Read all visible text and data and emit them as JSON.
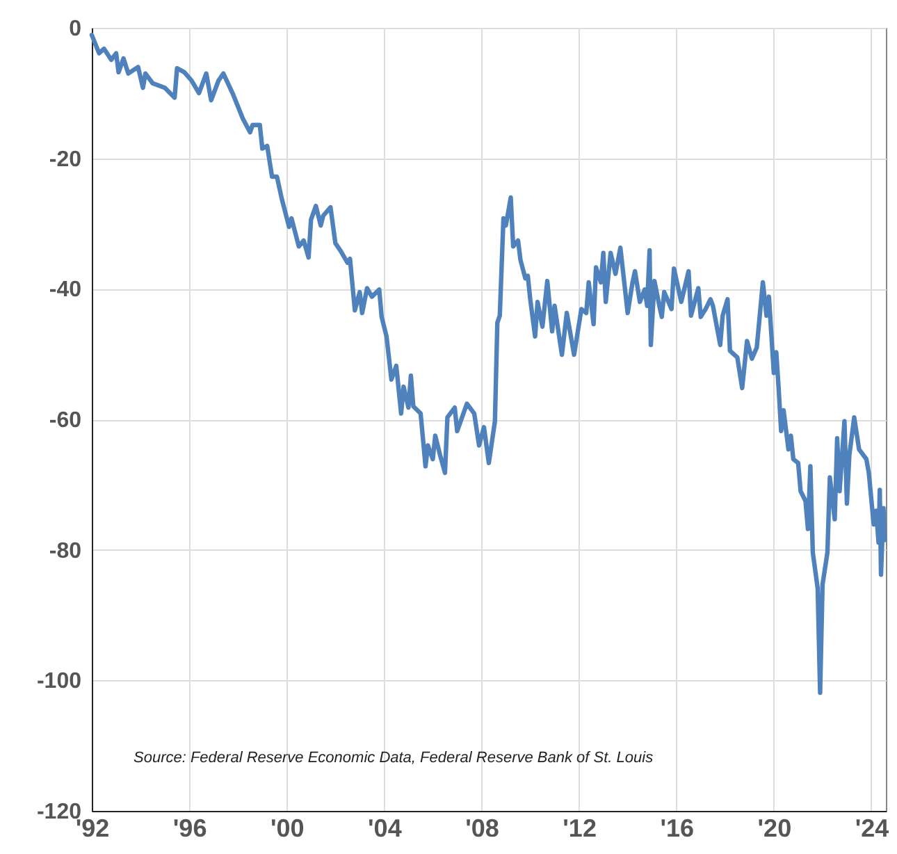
{
  "chart_data": {
    "type": "line",
    "x": [
      1992.0,
      1992.3,
      1992.5,
      1992.8,
      1993.0,
      1993.1,
      1993.3,
      1993.5,
      1993.9,
      1994.1,
      1994.2,
      1994.5,
      1995.0,
      1995.4,
      1995.5,
      1995.8,
      1996.1,
      1996.4,
      1996.7,
      1996.9,
      1997.2,
      1997.4,
      1997.8,
      1998.2,
      1998.5,
      1998.6,
      1998.9,
      1999.0,
      1999.2,
      1999.4,
      1999.6,
      1999.8,
      2000.1,
      2000.2,
      2000.5,
      2000.7,
      2000.9,
      2001.0,
      2001.2,
      2001.4,
      2001.5,
      2001.8,
      2002.0,
      2002.2,
      2002.5,
      2002.6,
      2002.8,
      2003.0,
      2003.1,
      2003.3,
      2003.5,
      2003.8,
      2003.9,
      2004.1,
      2004.3,
      2004.5,
      2004.7,
      2004.8,
      2005.0,
      2005.1,
      2005.2,
      2005.5,
      2005.7,
      2005.8,
      2006.0,
      2006.1,
      2006.3,
      2006.5,
      2006.6,
      2006.9,
      2007.0,
      2007.4,
      2007.7,
      2007.9,
      2008.1,
      2008.3,
      2008.55,
      2008.65,
      2008.75,
      2008.9,
      2009.0,
      2009.2,
      2009.3,
      2009.5,
      2009.6,
      2009.8,
      2009.9,
      2010.0,
      2010.2,
      2010.3,
      2010.5,
      2010.7,
      2010.9,
      2011.0,
      2011.3,
      2011.5,
      2011.8,
      2012.1,
      2012.3,
      2012.4,
      2012.6,
      2012.7,
      2012.9,
      2013.0,
      2013.1,
      2013.3,
      2013.5,
      2013.7,
      2014.0,
      2014.2,
      2014.3,
      2014.5,
      2014.7,
      2014.8,
      2014.9,
      2014.95,
      2015.1,
      2015.3,
      2015.4,
      2015.5,
      2015.8,
      2015.9,
      2016.2,
      2016.5,
      2016.6,
      2016.9,
      2017.0,
      2017.2,
      2017.4,
      2017.5,
      2017.8,
      2017.9,
      2018.1,
      2018.2,
      2018.5,
      2018.7,
      2018.9,
      2019.1,
      2019.3,
      2019.55,
      2019.7,
      2019.8,
      2020.0,
      2020.1,
      2020.2,
      2020.3,
      2020.4,
      2020.6,
      2020.7,
      2020.8,
      2021.0,
      2021.1,
      2021.3,
      2021.4,
      2021.5,
      2021.6,
      2021.8,
      2021.9,
      2022.0,
      2022.2,
      2022.3,
      2022.5,
      2022.6,
      2022.7,
      2022.9,
      2023.0,
      2023.1,
      2023.3,
      2023.5,
      2023.8,
      2023.9,
      2024.1,
      2024.2,
      2024.3,
      2024.35,
      2024.4,
      2024.5,
      2024.55
    ],
    "series": [
      {
        "color": "#4f81bd",
        "values": [
          -1.1,
          -3.9,
          -3.2,
          -4.9,
          -3.9,
          -6.8,
          -4.7,
          -7.0,
          -6.0,
          -9.2,
          -7.0,
          -8.5,
          -9.2,
          -10.7,
          -6.2,
          -6.8,
          -8.1,
          -10.0,
          -7.0,
          -11.1,
          -8.1,
          -7.0,
          -10.2,
          -13.9,
          -16.0,
          -14.9,
          -14.9,
          -18.5,
          -18.1,
          -22.8,
          -22.8,
          -26.2,
          -30.5,
          -29.2,
          -33.5,
          -32.6,
          -35.2,
          -29.4,
          -27.3,
          -30.3,
          -28.8,
          -27.5,
          -33.0,
          -34.1,
          -36.0,
          -35.4,
          -43.3,
          -40.5,
          -43.7,
          -39.9,
          -41.2,
          -40.1,
          -44.3,
          -47.3,
          -53.9,
          -51.8,
          -59.1,
          -55.0,
          -58.2,
          -53.3,
          -58.0,
          -59.1,
          -67.2,
          -64.0,
          -66.1,
          -62.5,
          -65.5,
          -68.2,
          -59.7,
          -58.2,
          -61.8,
          -57.6,
          -59.1,
          -64.0,
          -61.2,
          -66.7,
          -60.3,
          -45.2,
          -44.1,
          -29.2,
          -30.3,
          -26.0,
          -33.5,
          -32.6,
          -35.6,
          -38.4,
          -38.0,
          -41.6,
          -47.3,
          -42.0,
          -45.8,
          -38.8,
          -46.5,
          -42.6,
          -50.1,
          -43.7,
          -50.1,
          -43.1,
          -43.7,
          -39.0,
          -45.4,
          -36.7,
          -39.0,
          -34.5,
          -42.0,
          -34.5,
          -37.7,
          -33.7,
          -43.7,
          -39.0,
          -37.3,
          -42.0,
          -40.1,
          -42.6,
          -34.1,
          -48.6,
          -38.8,
          -42.6,
          -44.3,
          -40.5,
          -43.1,
          -36.9,
          -42.0,
          -37.3,
          -44.1,
          -39.9,
          -44.3,
          -43.1,
          -41.6,
          -42.6,
          -48.6,
          -44.1,
          -41.6,
          -49.5,
          -50.5,
          -55.2,
          -48.0,
          -50.7,
          -49.0,
          -39.0,
          -44.1,
          -41.2,
          -52.9,
          -49.7,
          -55.4,
          -61.8,
          -58.6,
          -64.6,
          -62.5,
          -66.1,
          -66.7,
          -71.0,
          -72.5,
          -76.8,
          -67.2,
          -80.4,
          -85.9,
          -101.9,
          -85.3,
          -80.4,
          -68.9,
          -75.3,
          -62.9,
          -71.0,
          -60.3,
          -72.9,
          -65.5,
          -59.7,
          -64.6,
          -66.1,
          -68.2,
          -76.1,
          -74.0,
          -78.9,
          -70.8,
          -83.8,
          -73.6,
          -78.5
        ]
      }
    ],
    "xlim": [
      1992,
      2024.6
    ],
    "xticks": [
      {
        "value": 1992,
        "label": "'92"
      },
      {
        "value": 1996,
        "label": "'96"
      },
      {
        "value": 2000,
        "label": "'00"
      },
      {
        "value": 2004,
        "label": "'04"
      },
      {
        "value": 2008,
        "label": "'08"
      },
      {
        "value": 2012,
        "label": "'12"
      },
      {
        "value": 2016,
        "label": "'16"
      },
      {
        "value": 2020,
        "label": "'20"
      },
      {
        "value": 2024,
        "label": "'24"
      }
    ],
    "ylim": [
      -120,
      0
    ],
    "yticks": [
      -120,
      -100,
      -80,
      -60,
      -40,
      -20,
      0
    ],
    "grid": true,
    "annotations": [
      "Source: Federal Reserve Economic Data, Federal Reserve Bank of St. Louis"
    ]
  }
}
